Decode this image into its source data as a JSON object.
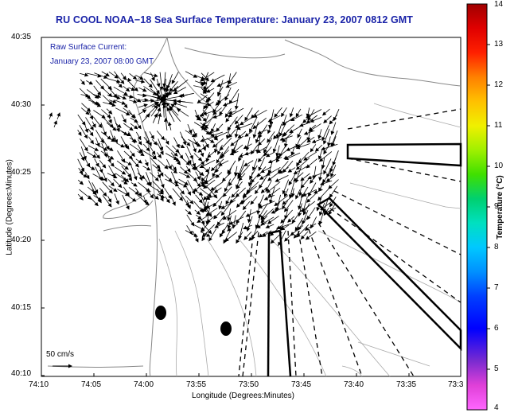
{
  "title": "RU COOL  NOAA−18  Sea Surface Temperature:  January 23, 2007 0812 GMT",
  "legend": {
    "line1": "Raw Surface Current:",
    "line2": "January 23, 2007 08:00 GMT",
    "scale_label": "50 cm/s"
  },
  "axes": {
    "xlabel": "Longitude (Degrees:Minutes)",
    "ylabel": "Latitude (Degrees:Minutes)",
    "xticks": [
      "74:10",
      "74:05",
      "74:00",
      "73:55",
      "73:50",
      "73:45",
      "73:40",
      "73:35",
      "73:3"
    ],
    "yticks": [
      "40:35",
      "40:30",
      "40:25",
      "40:20",
      "40:15",
      "40:10"
    ]
  },
  "colorbar": {
    "title": "Temperature (°C)",
    "ticks": [
      "14",
      "13",
      "12",
      "11",
      "10",
      "9",
      "8",
      "7",
      "6",
      "5",
      "4"
    ],
    "min": 4,
    "max": 14
  }
}
